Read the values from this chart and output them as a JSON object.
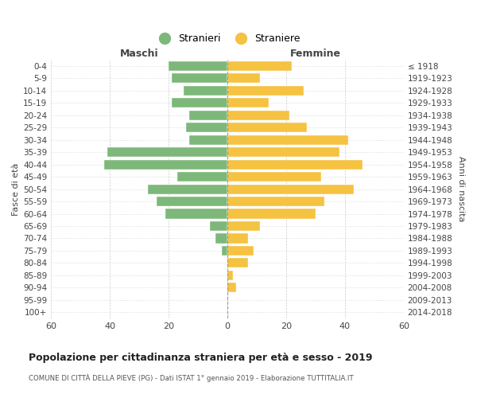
{
  "age_groups": [
    "0-4",
    "5-9",
    "10-14",
    "15-19",
    "20-24",
    "25-29",
    "30-34",
    "35-39",
    "40-44",
    "45-49",
    "50-54",
    "55-59",
    "60-64",
    "65-69",
    "70-74",
    "75-79",
    "80-84",
    "85-89",
    "90-94",
    "95-99",
    "100+"
  ],
  "birth_years": [
    "2014-2018",
    "2009-2013",
    "2004-2008",
    "1999-2003",
    "1994-1998",
    "1989-1993",
    "1984-1988",
    "1979-1983",
    "1974-1978",
    "1969-1973",
    "1964-1968",
    "1959-1963",
    "1954-1958",
    "1949-1953",
    "1944-1948",
    "1939-1943",
    "1934-1938",
    "1929-1933",
    "1924-1928",
    "1919-1923",
    "≤ 1918"
  ],
  "maschi": [
    20,
    19,
    15,
    19,
    13,
    14,
    13,
    41,
    42,
    17,
    27,
    24,
    21,
    6,
    4,
    2,
    0,
    0,
    0,
    0,
    0
  ],
  "femmine": [
    22,
    11,
    26,
    14,
    21,
    27,
    41,
    38,
    46,
    32,
    43,
    33,
    30,
    11,
    7,
    9,
    7,
    2,
    3,
    0,
    0
  ],
  "maschi_color": "#7db87a",
  "femmine_color": "#f5c242",
  "background_color": "#ffffff",
  "grid_color": "#cccccc",
  "title": "Popolazione per cittadinanza straniera per età e sesso - 2019",
  "subtitle": "COMUNE DI CITTÀ DELLA PIEVE (PG) - Dati ISTAT 1° gennaio 2019 - Elaborazione TUTTITALIA.IT",
  "xlabel_maschi": "Maschi",
  "xlabel_femmine": "Femmine",
  "ylabel_left": "Fasce di età",
  "ylabel_right": "Anni di nascita",
  "legend_maschi": "Stranieri",
  "legend_femmine": "Straniere",
  "xlim": 60
}
